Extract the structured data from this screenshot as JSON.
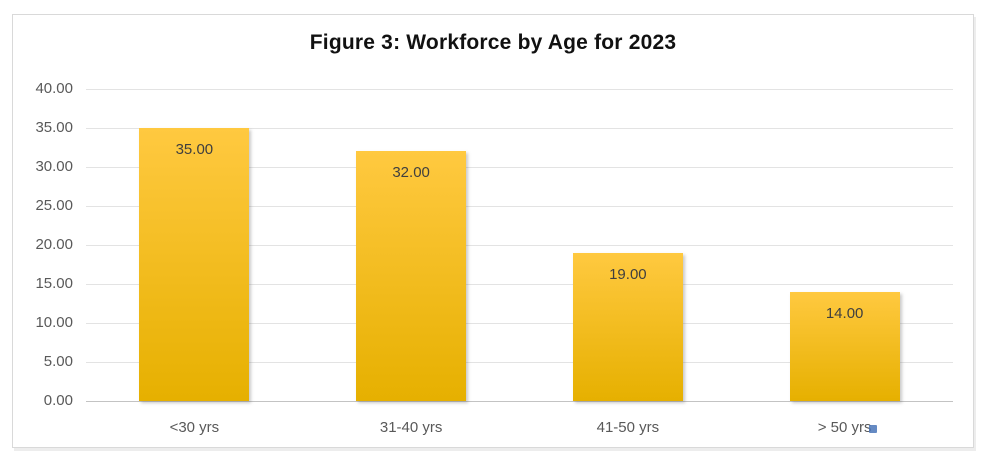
{
  "figure": {
    "title": "Figure 3: Workforce by Age for 2023"
  },
  "chart_data": {
    "type": "bar",
    "title": "Figure 3: Workforce by Age for 2023",
    "categories": [
      "<30 yrs",
      "31-40 yrs",
      "41-50 yrs",
      "> 50 yrs"
    ],
    "values": [
      35,
      32,
      19,
      14
    ],
    "value_labels": [
      "35.00",
      "32.00",
      "19.00",
      "14.00"
    ],
    "xlabel": "",
    "ylabel": "",
    "ylim": [
      0,
      40
    ],
    "ytick_step": 5,
    "ytick_labels": [
      "0.00",
      "5.00",
      "10.00",
      "15.00",
      "20.00",
      "25.00",
      "30.00",
      "35.00",
      "40.00"
    ],
    "grid": true,
    "legend": "none",
    "data_label_position": "inside-end"
  },
  "colors": {
    "bar_gradient_top": "#FFC940",
    "bar_gradient_bottom": "#E6B000",
    "grid_line": "#E3E3E3",
    "axis_line": "#C3C3C3",
    "tick_label": "#595959",
    "data_label": "#3F3F3F",
    "title": "#111111",
    "frame_border": "#D9D9D9",
    "background": "#FFFFFF",
    "artifact_blue": "#4A76B8"
  }
}
